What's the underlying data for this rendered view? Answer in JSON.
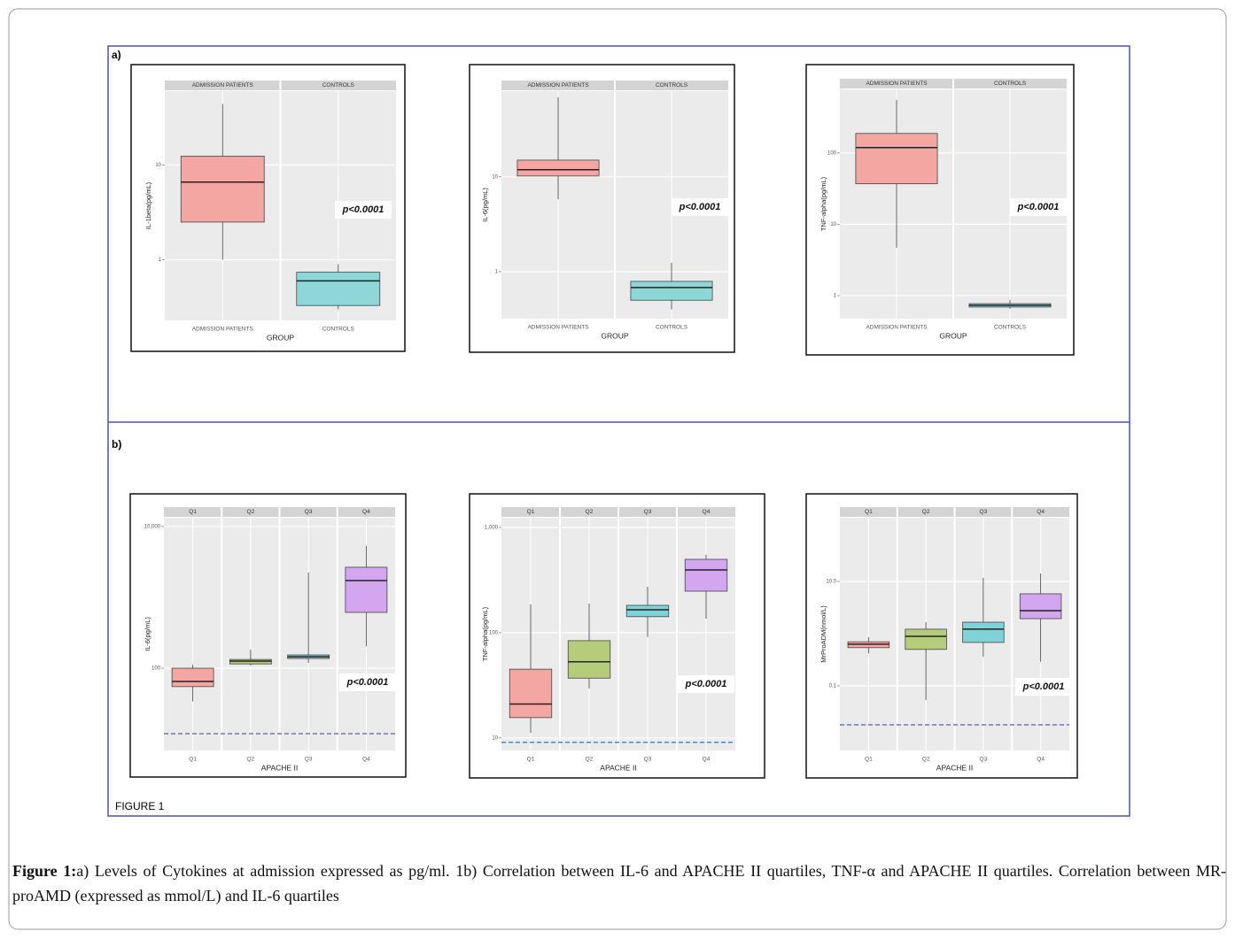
{
  "figure": {
    "panel_a": "a)",
    "panel_b": "b)",
    "label": "FIGURE 1"
  },
  "caption": {
    "label": "Figure 1:",
    "text": "a) Levels of Cytokines at admission expressed as pg/ml. 1b) Correlation between IL-6 and APACHE II quartiles, TNF-α and APACHE II quartiles. Correlation between MR-proAMD (expressed as mmol/L) and IL-6 quartiles"
  },
  "chart_data": [
    {
      "type": "box",
      "ylabel": "IL-1beta(pg/mL)",
      "xlabel": "GROUP",
      "annotation": "p<0.0001",
      "log_scale": true,
      "categories": [
        "ADMISSION PATIENTS",
        "CONTROLS"
      ],
      "colors": [
        "#f4a6a3",
        "#8fd6d9"
      ],
      "ylim": [
        0.23,
        60
      ],
      "yticks": [
        1,
        10
      ],
      "boxes": [
        {
          "min": 1.0,
          "q1": 2.5,
          "median": 6.6,
          "q3": 12.4,
          "max": 44
        },
        {
          "min": 0.3,
          "q1": 0.33,
          "median": 0.6,
          "q3": 0.74,
          "max": 0.9
        }
      ]
    },
    {
      "type": "box",
      "ylabel": "IL-6(pg/mL)",
      "xlabel": "GROUP",
      "annotation": "p<0.0001",
      "log_scale": true,
      "categories": [
        "ADMISSION PATIENTS",
        "CONTROLS"
      ],
      "colors": [
        "#f4a6a3",
        "#8fd6d9"
      ],
      "ylim": [
        0.32,
        80
      ],
      "yticks": [
        1,
        10
      ],
      "boxes": [
        {
          "min": 5.8,
          "q1": 10.2,
          "median": 11.9,
          "q3": 15,
          "max": 69
        },
        {
          "min": 0.4,
          "q1": 0.5,
          "median": 0.68,
          "q3": 0.79,
          "max": 1.24
        }
      ]
    },
    {
      "type": "box",
      "ylabel": "TNF-alpha(pg/mL)",
      "xlabel": "GROUP",
      "annotation": "p<0.0001",
      "log_scale": true,
      "categories": [
        "ADMISSION PATIENTS",
        "CONTROLS"
      ],
      "colors": [
        "#f4a6a3",
        "#8fd6d9"
      ],
      "ylim": [
        0.475,
        780
      ],
      "yticks": [
        1,
        10,
        100
      ],
      "boxes": [
        {
          "min": 4.7,
          "q1": 37,
          "median": 119,
          "q3": 188,
          "max": 556
        },
        {
          "min": 0.65,
          "q1": 0.69,
          "median": 0.73,
          "q3": 0.77,
          "max": 0.87
        }
      ]
    },
    {
      "type": "box",
      "ylabel": "IL-6(pg/mL)",
      "xlabel": "APACHE II",
      "annotation": "p<0.0001",
      "log_scale": true,
      "categories": [
        "Q1",
        "Q2",
        "Q3",
        "Q4"
      ],
      "colors": [
        "#f4a6a3",
        "#b5cc7a",
        "#7fd3d6",
        "#d3a6f0"
      ],
      "ylim": [
        6.9,
        13300
      ],
      "yticks": [
        100,
        {
          "value": 10000,
          "label": "10,000"
        }
      ],
      "reference_line": 11.9,
      "reference_color": "#5b7fc4",
      "boxes": [
        {
          "min": 34,
          "q1": 55,
          "median": 65,
          "q3": 100,
          "max": 112
        },
        {
          "min": 109,
          "q1": 115,
          "median": 126,
          "q3": 133,
          "max": 183
        },
        {
          "min": 119,
          "q1": 137,
          "median": 145,
          "q3": 154,
          "max": 2239
        },
        {
          "min": 205,
          "q1": 613,
          "median": 1728,
          "q3": 2661,
          "max": 5309
        }
      ]
    },
    {
      "type": "box",
      "ylabel": "TNF-alpha(pg/mL)",
      "xlabel": "APACHE II",
      "annotation": "p<0.0001",
      "log_scale": true,
      "categories": [
        "Q1",
        "Q2",
        "Q3",
        "Q4"
      ],
      "colors": [
        "#f4a6a3",
        "#b5cc7a",
        "#7fd3d6",
        "#d3a6f0"
      ],
      "ylim": [
        7.6,
        1237
      ],
      "yticks": [
        10,
        100,
        {
          "value": 1000,
          "label": "1,000"
        }
      ],
      "reference_line": 9.1,
      "reference_color": "#5b7fc4",
      "boxes": [
        {
          "min": 11.2,
          "q1": 15.6,
          "median": 21,
          "q3": 45,
          "max": 186
        },
        {
          "min": 29.5,
          "q1": 37,
          "median": 53,
          "q3": 84,
          "max": 189
        },
        {
          "min": 91,
          "q1": 142,
          "median": 165,
          "q3": 182,
          "max": 273
        },
        {
          "min": 136,
          "q1": 248,
          "median": 395,
          "q3": 498,
          "max": 550
        }
      ]
    },
    {
      "type": "box",
      "ylabel": "MrProADM(nmol/L)",
      "xlabel": "APACHE II",
      "annotation": "p<0.0001",
      "log_scale": true,
      "categories": [
        "Q1",
        "Q2",
        "Q3",
        "Q4"
      ],
      "colors": [
        "#f4a6a3",
        "#b5cc7a",
        "#7fd3d6",
        "#d3a6f0"
      ],
      "ylim": [
        0.0058,
        166
      ],
      "yticks": [
        0.1,
        {
          "value": 10,
          "label": "10.0"
        }
      ],
      "reference_line": 0.018,
      "reference_color": "#5b7fc4",
      "boxes": [
        {
          "min": 0.42,
          "q1": 0.54,
          "median": 0.63,
          "q3": 0.7,
          "max": 0.855
        },
        {
          "min": 0.054,
          "q1": 0.5,
          "median": 0.89,
          "q3": 1.22,
          "max": 1.66
        },
        {
          "min": 0.36,
          "q1": 0.68,
          "median": 1.22,
          "q3": 1.66,
          "max": 11.7
        },
        {
          "min": 0.29,
          "q1": 1.94,
          "median": 2.76,
          "q3": 5.8,
          "max": 14.2
        }
      ]
    }
  ]
}
